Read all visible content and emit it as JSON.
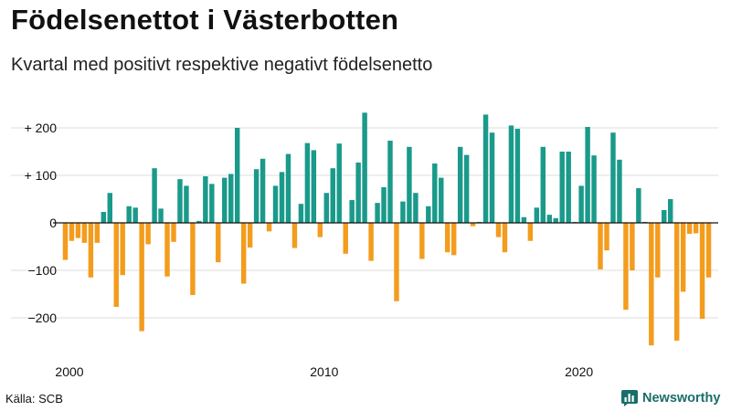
{
  "header": {
    "title": "Födelsenettot i Västerbotten",
    "subtitle": "Kvartal med positivt respektive negativt födelsenetto"
  },
  "footer": {
    "source": "Källa: SCB",
    "brand": "Newsworthy"
  },
  "colors": {
    "positive": "#1a9a8a",
    "negative": "#f39c1d",
    "grid": "#dddddd",
    "axis": "#111111",
    "brand": "#1a6e6a"
  },
  "chart_data": {
    "type": "bar",
    "title": "Födelsenettot i Västerbotten",
    "subtitle": "Kvartal med positivt respektive negativt födelsenetto",
    "x_start": 2000,
    "x_step": 0.25,
    "xlim": [
      2000,
      2025.75
    ],
    "ylim": [
      -270,
      250
    ],
    "y_ticks": [
      -200,
      -100,
      0,
      100,
      200
    ],
    "y_tick_labels": [
      "−200",
      "−100",
      "0",
      "+ 100",
      "+ 200"
    ],
    "x_ticks": [
      2000,
      2010,
      2020
    ],
    "x_tick_labels": [
      "2000",
      "2010",
      "2020"
    ],
    "grid": true,
    "legend": "none",
    "values": [
      -78,
      -38,
      -32,
      -42,
      -115,
      -42,
      23,
      63,
      -177,
      -110,
      35,
      32,
      -228,
      -45,
      115,
      30,
      -113,
      -40,
      92,
      78,
      -152,
      4,
      98,
      82,
      -83,
      95,
      103,
      200,
      -128,
      -52,
      113,
      135,
      -18,
      78,
      107,
      145,
      -53,
      40,
      168,
      153,
      -30,
      63,
      115,
      167,
      -65,
      48,
      127,
      232,
      -80,
      42,
      75,
      173,
      -165,
      45,
      160,
      63,
      -76,
      35,
      125,
      95,
      -62,
      -68,
      160,
      143,
      -7,
      2,
      228,
      190,
      -30,
      -62,
      205,
      198,
      12,
      -38,
      32,
      160,
      17,
      10,
      150,
      150,
      2,
      78,
      202,
      142,
      -98,
      -58,
      190,
      133,
      -183,
      -100,
      73,
      2,
      -258,
      -115,
      27,
      50,
      -248,
      -145,
      -23,
      -22,
      -202,
      -115
    ]
  }
}
